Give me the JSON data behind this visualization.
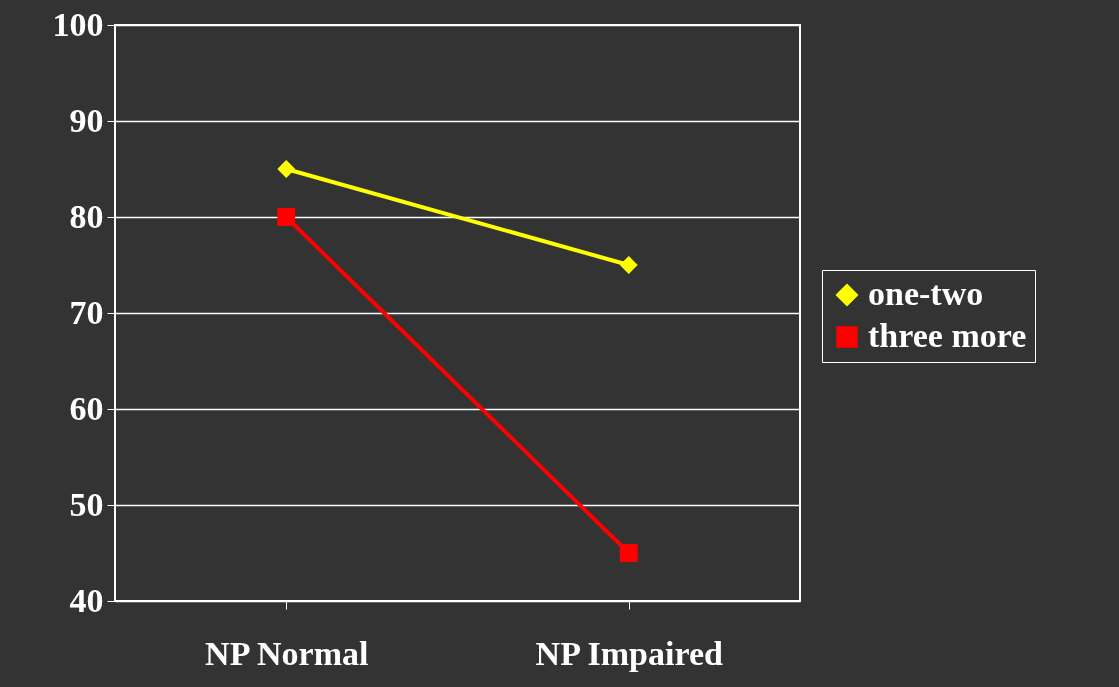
{
  "chart_data": {
    "type": "line",
    "categories": [
      "NP Normal",
      "NP Impaired"
    ],
    "series": [
      {
        "name": "one-two",
        "color": "#ffff00",
        "marker": "diamond",
        "values": [
          85,
          75
        ]
      },
      {
        "name": "three more",
        "color": "#ff0000",
        "marker": "square",
        "values": [
          80,
          45
        ]
      }
    ],
    "ylim": [
      40,
      100
    ],
    "yticks": [
      40,
      50,
      60,
      70,
      80,
      90,
      100
    ],
    "grid": "y",
    "legend": "right"
  }
}
